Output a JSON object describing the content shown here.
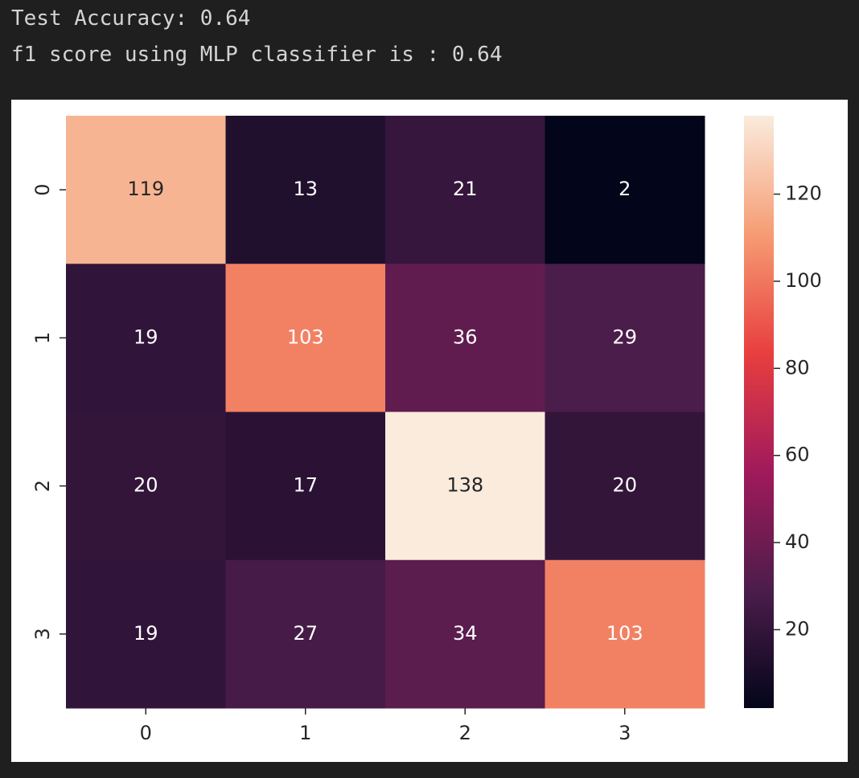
{
  "output_lines": [
    "Test Accuracy: 0.64",
    "f1 score using MLP classifier is : 0.64"
  ],
  "chart_data": {
    "type": "heatmap",
    "x_categories": [
      "0",
      "1",
      "2",
      "3"
    ],
    "y_categories": [
      "0",
      "1",
      "2",
      "3"
    ],
    "values": [
      [
        119,
        13,
        21,
        2
      ],
      [
        19,
        103,
        36,
        29
      ],
      [
        20,
        17,
        138,
        20
      ],
      [
        19,
        27,
        34,
        103
      ]
    ],
    "colormap": [
      "#03051a",
      "#4c1d4b",
      "#a11a5b",
      "#e83f3f",
      "#f69c73",
      "#faebdd"
    ],
    "colorbar_lim": [
      2,
      138
    ],
    "colorbar_ticks": [
      20,
      40,
      60,
      80,
      100,
      120
    ]
  }
}
